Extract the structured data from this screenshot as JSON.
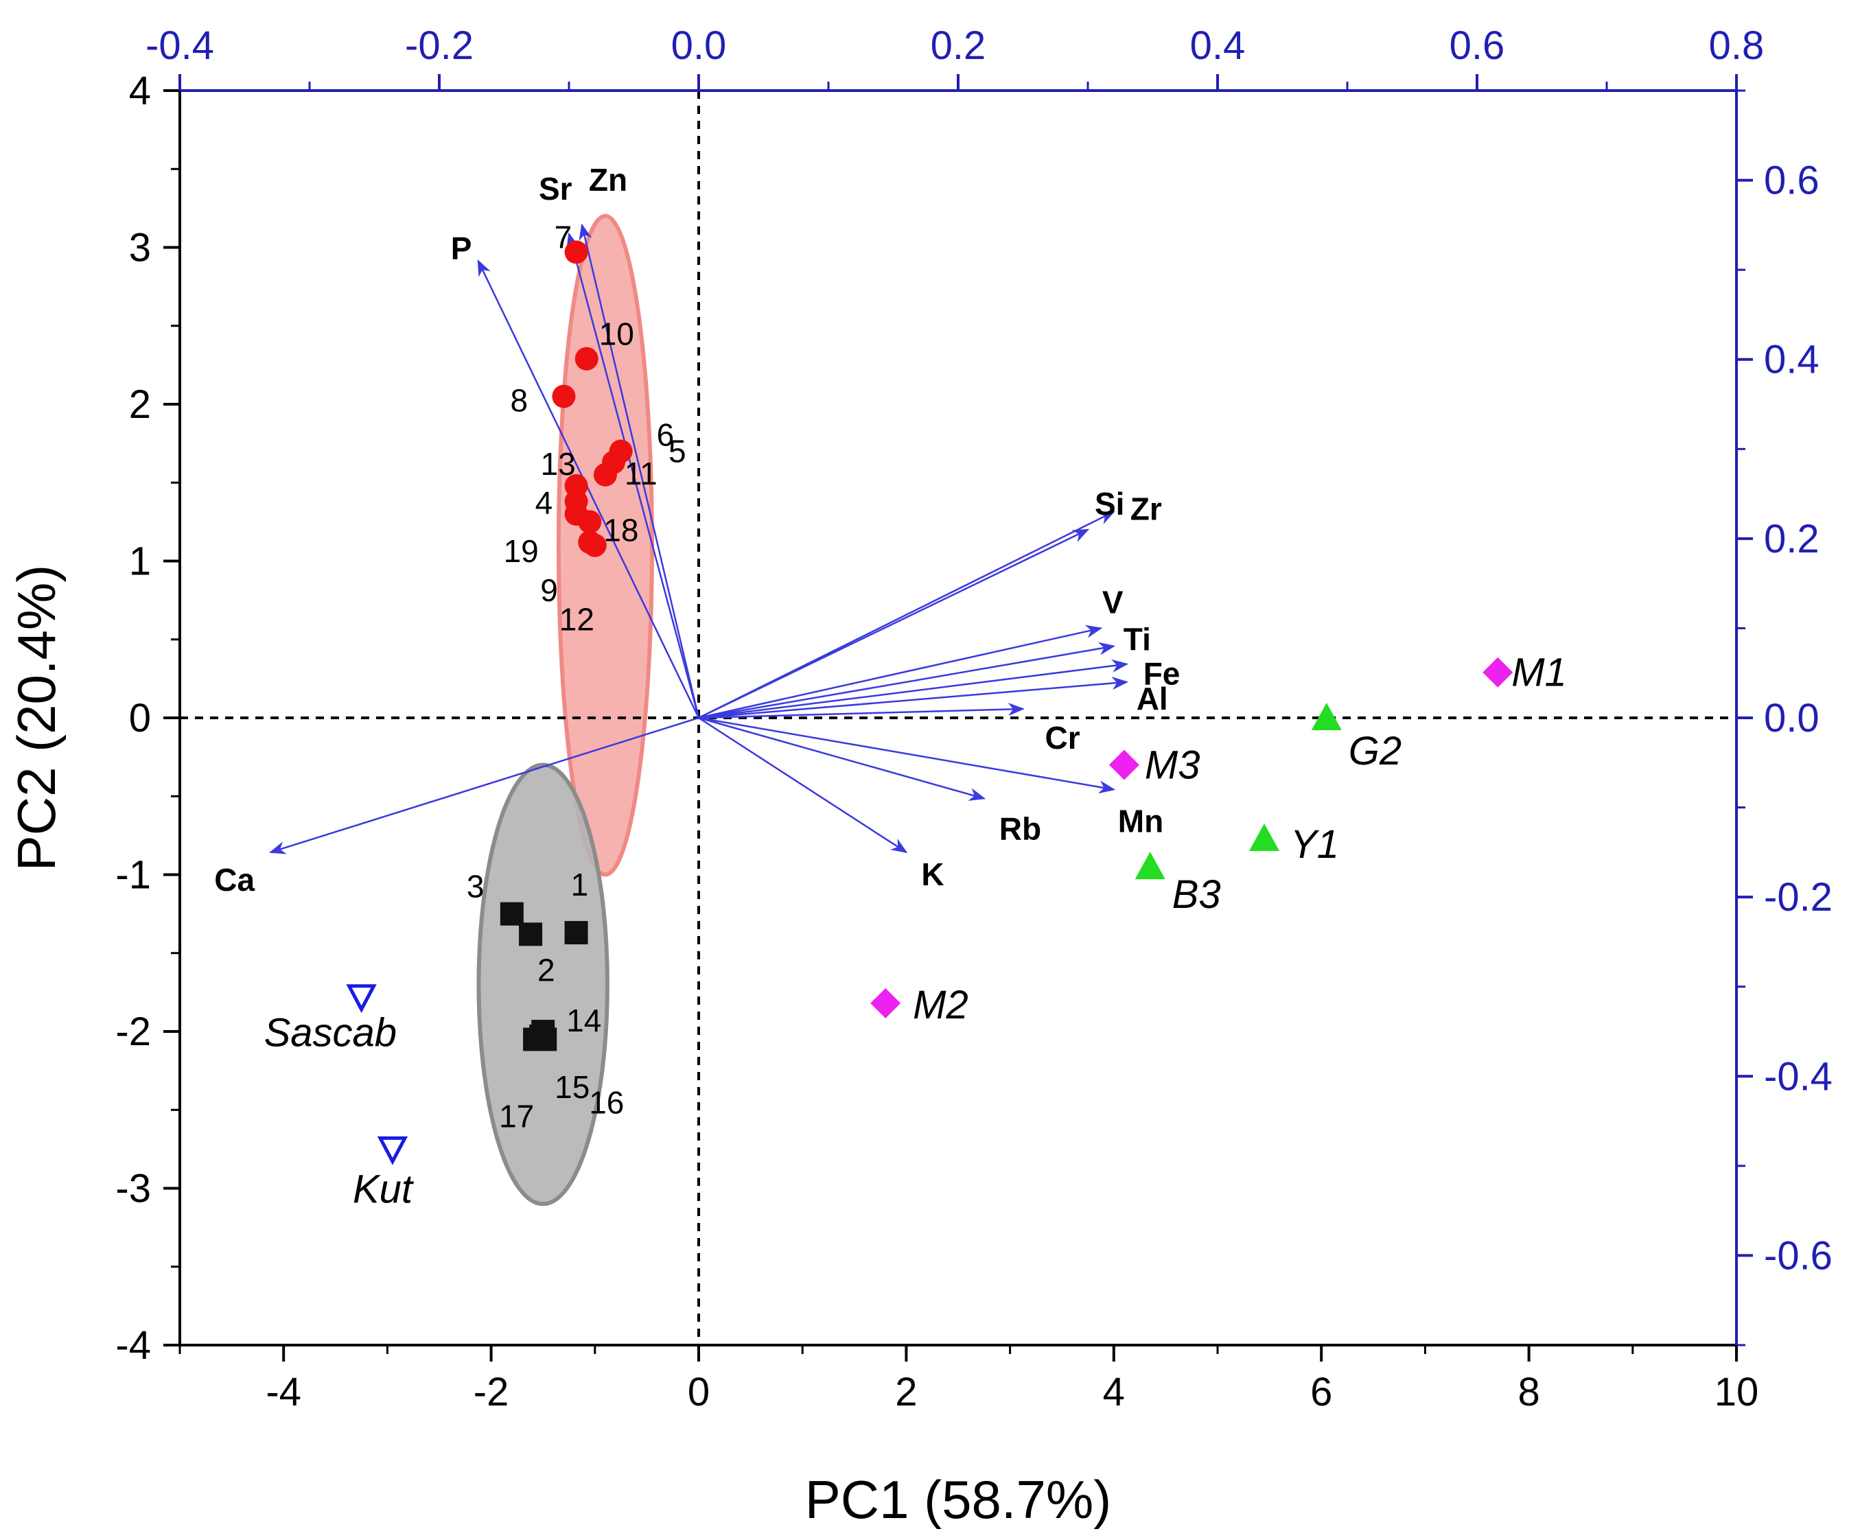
{
  "chart_data": {
    "type": "scatter",
    "subtype": "pca-biplot",
    "xlabel": "PC1 (58.7%)",
    "ylabel": "PC2 (20.4%)",
    "xlim": [
      -5,
      10
    ],
    "ylim": [
      -4,
      4
    ],
    "x_ticks": [
      "-4",
      "-2",
      "0",
      "2",
      "4",
      "6",
      "8",
      "10"
    ],
    "x_tick_values": [
      -4,
      -2,
      0,
      2,
      4,
      6,
      8,
      10
    ],
    "y_ticks": [
      "-4",
      "-3",
      "-2",
      "-1",
      "0",
      "1",
      "2",
      "3",
      "4"
    ],
    "y_tick_values": [
      -4,
      -3,
      -2,
      -1,
      0,
      1,
      2,
      3,
      4
    ],
    "top_axis": {
      "lim": [
        -0.4,
        0.8
      ],
      "ticks": [
        "-0.4",
        "-0.2",
        "0.0",
        "0.2",
        "0.4",
        "0.6",
        "0.8"
      ],
      "tick_values": [
        -0.4,
        -0.2,
        0.0,
        0.2,
        0.4,
        0.6,
        0.8
      ],
      "color": "#1f1fb4"
    },
    "right_axis": {
      "lim": [
        -0.7,
        0.7
      ],
      "ticks": [
        "0.6",
        "0.4",
        "0.2",
        "0.0",
        "-0.2",
        "-0.4",
        "-0.6"
      ],
      "tick_values": [
        0.6,
        0.4,
        0.2,
        0.0,
        -0.2,
        -0.4,
        -0.6
      ],
      "color": "#1f1fb4"
    },
    "loadings": [
      {
        "name": "P",
        "x": -0.17,
        "y": 0.51
      },
      {
        "name": "Sr",
        "x": -0.1,
        "y": 0.54
      },
      {
        "name": "Zn",
        "x": -0.09,
        "y": 0.55
      },
      {
        "name": "Si",
        "x": 0.3,
        "y": 0.21
      },
      {
        "name": "Zr",
        "x": 0.32,
        "y": 0.23
      },
      {
        "name": "V",
        "x": 0.31,
        "y": 0.1
      },
      {
        "name": "Ti",
        "x": 0.32,
        "y": 0.08
      },
      {
        "name": "Fe",
        "x": 0.33,
        "y": 0.06
      },
      {
        "name": "Al",
        "x": 0.33,
        "y": 0.04
      },
      {
        "name": "Cr",
        "x": 0.25,
        "y": 0.01
      },
      {
        "name": "Mn",
        "x": 0.32,
        "y": -0.08
      },
      {
        "name": "Rb",
        "x": 0.22,
        "y": -0.09
      },
      {
        "name": "K",
        "x": 0.16,
        "y": -0.15
      },
      {
        "name": "Ca",
        "x": -0.33,
        "y": -0.15
      }
    ],
    "groups": [
      {
        "name": "red-circles",
        "color": "#ee1111",
        "ellipse": {
          "cx": -0.9,
          "cy": 1.1,
          "rx": 0.45,
          "ry": 2.1,
          "fill": "#f5aaa6",
          "stroke": "#f08a84"
        },
        "points": [
          {
            "label": "7",
            "x": -1.18,
            "y": 2.97
          },
          {
            "label": "10",
            "x": -1.08,
            "y": 2.29
          },
          {
            "label": "8",
            "x": -1.3,
            "y": 2.05
          },
          {
            "label": "6",
            "x": -0.75,
            "y": 1.7
          },
          {
            "label": "5",
            "x": -0.82,
            "y": 1.63
          },
          {
            "label": "11",
            "x": -0.9,
            "y": 1.55
          },
          {
            "label": "13",
            "x": -1.18,
            "y": 1.48
          },
          {
            "label": "4",
            "x": -1.18,
            "y": 1.38
          },
          {
            "label": "19",
            "x": -1.18,
            "y": 1.3
          },
          {
            "label": "18",
            "x": -1.05,
            "y": 1.25
          },
          {
            "label": "9",
            "x": -1.05,
            "y": 1.12
          },
          {
            "label": "12",
            "x": -1.0,
            "y": 1.1
          }
        ]
      },
      {
        "name": "black-squares",
        "color": "#111111",
        "ellipse": {
          "cx": -1.5,
          "cy": -1.7,
          "rx": 0.62,
          "ry": 1.4,
          "fill": "#b4b4b4",
          "stroke": "#8c8c8c"
        },
        "points": [
          {
            "label": "3",
            "x": -1.8,
            "y": -1.25
          },
          {
            "label": "1",
            "x": -1.18,
            "y": -1.37
          },
          {
            "label": "2",
            "x": -1.62,
            "y": -1.38
          },
          {
            "label": "14",
            "x": -1.5,
            "y": -2.0
          },
          {
            "label": "15",
            "x": -1.52,
            "y": -2.03
          },
          {
            "label": "16",
            "x": -1.48,
            "y": -2.05
          },
          {
            "label": "17",
            "x": -1.58,
            "y": -2.05
          }
        ]
      }
    ],
    "reference_samples": [
      {
        "label": "M1",
        "marker": "diamond",
        "color": "#ee22ee",
        "x": 7.7,
        "y": 0.29
      },
      {
        "label": "M3",
        "marker": "diamond",
        "color": "#ee22ee",
        "x": 4.1,
        "y": -0.3
      },
      {
        "label": "M2",
        "marker": "diamond",
        "color": "#ee22ee",
        "x": 1.8,
        "y": -1.82
      },
      {
        "label": "G2",
        "marker": "triangle",
        "color": "#22dd22",
        "x": 6.05,
        "y": 0.0
      },
      {
        "label": "Y1",
        "marker": "triangle",
        "color": "#22dd22",
        "x": 5.45,
        "y": -0.77
      },
      {
        "label": "B3",
        "marker": "triangle",
        "color": "#22dd22",
        "x": 4.35,
        "y": -0.95
      },
      {
        "label": "Sascab",
        "marker": "triangle-down-open",
        "color": "#1a1ae6",
        "x": -3.25,
        "y": -1.78
      },
      {
        "label": "Kut",
        "marker": "triangle-down-open",
        "color": "#1a1ae6",
        "x": -2.95,
        "y": -2.75
      }
    ],
    "reference_lines": {
      "x": 0,
      "y": 0,
      "style": "dashed"
    }
  }
}
